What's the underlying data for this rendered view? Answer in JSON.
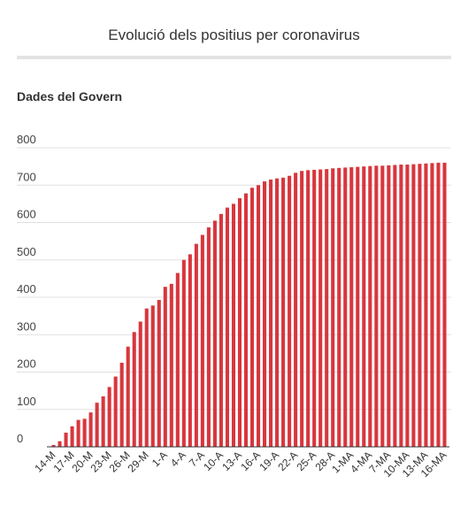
{
  "header": {
    "title": "Evolució dels positius per coronavirus",
    "subtitle": "Dades del Govern"
  },
  "colors": {
    "bar": "#d8363d",
    "grid": "#e0e0e0",
    "baseline": "#333333"
  },
  "chart_data": {
    "type": "bar",
    "title": "Evolució dels positius per coronavirus",
    "subtitle": "Dades del Govern",
    "xlabel": "",
    "ylabel": "",
    "ylim": [
      0,
      800
    ],
    "yticks": [
      0,
      100,
      200,
      300,
      400,
      500,
      600,
      700,
      800
    ],
    "grid": true,
    "categories": [
      "14-M",
      "15-M",
      "16-M",
      "17-M",
      "18-M",
      "19-M",
      "20-M",
      "21-M",
      "22-M",
      "23-M",
      "24-M",
      "25-M",
      "26-M",
      "27-M",
      "28-M",
      "29-M",
      "30-M",
      "31-M",
      "1-A",
      "2-A",
      "3-A",
      "4-A",
      "5-A",
      "6-A",
      "7-A",
      "8-A",
      "9-A",
      "10-A",
      "11-A",
      "12-A",
      "13-A",
      "14-A",
      "15-A",
      "16-A",
      "17-A",
      "18-A",
      "19-A",
      "20-A",
      "21-A",
      "22-A",
      "23-A",
      "24-A",
      "25-A",
      "26-A",
      "27-A",
      "28-A",
      "29-A",
      "30-A",
      "1-MA",
      "2-MA",
      "3-MA",
      "4-MA",
      "5-MA",
      "6-MA",
      "7-MA",
      "8-MA",
      "9-MA",
      "10-MA",
      "11-MA",
      "12-MA",
      "13-MA",
      "14-MA",
      "15-MA",
      "16-MA"
    ],
    "xtick_labels": [
      "14-M",
      "17-M",
      "20-M",
      "23-M",
      "26-M",
      "29-M",
      "1-A",
      "4-A",
      "7-A",
      "10-A",
      "13-A",
      "16-A",
      "19-A",
      "22-A",
      "25-A",
      "28-A",
      "1-MA",
      "4-MA",
      "7-MA",
      "10-MA",
      "13-MA",
      "16-MA"
    ],
    "values": [
      5,
      15,
      38,
      55,
      72,
      75,
      92,
      118,
      135,
      160,
      188,
      225,
      268,
      307,
      335,
      370,
      378,
      393,
      428,
      436,
      465,
      500,
      515,
      543,
      567,
      587,
      605,
      623,
      640,
      650,
      665,
      678,
      693,
      700,
      710,
      715,
      718,
      720,
      725,
      733,
      738,
      740,
      741,
      742,
      743,
      745,
      746,
      747,
      748,
      749,
      750,
      751,
      752,
      752,
      753,
      754,
      755,
      755,
      756,
      757,
      758,
      759,
      760,
      760
    ]
  }
}
